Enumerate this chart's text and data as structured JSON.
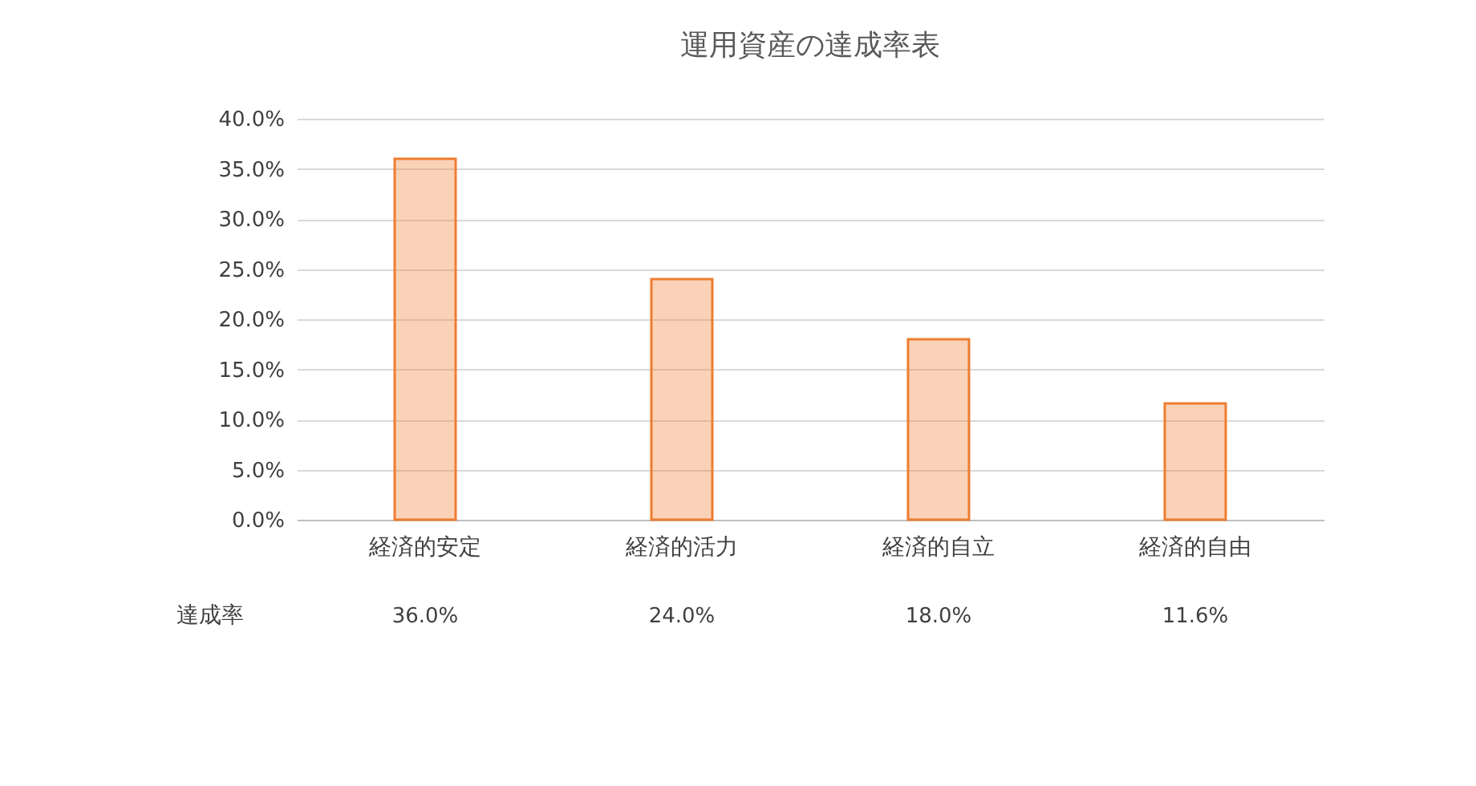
{
  "chart_data": {
    "type": "bar",
    "title": "運用資産の達成率表",
    "categories": [
      "経済的安定",
      "経済的活力",
      "経済的自立",
      "経済的自由"
    ],
    "series": [
      {
        "name": "達成率",
        "color": "#ed7d31",
        "values": [
          36.0,
          24.0,
          18.0,
          11.6
        ],
        "value_labels": [
          "36.0%",
          "24.0%",
          "18.0%",
          "11.6%"
        ]
      }
    ],
    "ylim": [
      0,
      40
    ],
    "yticks": [
      {
        "value": 0,
        "label": "0.0%"
      },
      {
        "value": 5,
        "label": "5.0%"
      },
      {
        "value": 10,
        "label": "10.0%"
      },
      {
        "value": 15,
        "label": "15.0%"
      },
      {
        "value": 20,
        "label": "20.0%"
      },
      {
        "value": 25,
        "label": "25.0%"
      },
      {
        "value": 30,
        "label": "30.0%"
      },
      {
        "value": 35,
        "label": "35.0%"
      },
      {
        "value": 40,
        "label": "40.0%"
      }
    ],
    "grid": "y"
  }
}
